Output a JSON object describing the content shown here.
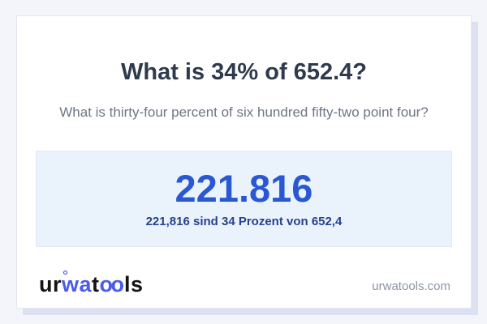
{
  "colors": {
    "page_background": "#f3f5fa",
    "card_background": "#ffffff",
    "card_border": "#e6e8f2",
    "card_shadow": "#dbe1f0",
    "title_text": "#2e3a4d",
    "subtitle_text": "#6e7686",
    "result_box_background": "#eaf3fc",
    "result_box_border": "#ddeaf7",
    "result_value_text": "#2a57d3",
    "result_description_text": "#25418f",
    "logo_dark": "#141414",
    "logo_blue": "#4a5ce8",
    "website_text": "#8c93a3"
  },
  "header": {
    "title": "What is 34% of 652.4?",
    "subtitle": "What is thirty-four percent of six hundred fifty-two point four?"
  },
  "result": {
    "value": "221.816",
    "description": "221,816 sind 34 Prozent von 652,4"
  },
  "footer": {
    "logo": {
      "segment_ur": "ur",
      "segment_wa": "wa",
      "segment_t": "t",
      "segment_oo": "oo",
      "segment_ls": "ls"
    },
    "website": "urwatools.com"
  }
}
